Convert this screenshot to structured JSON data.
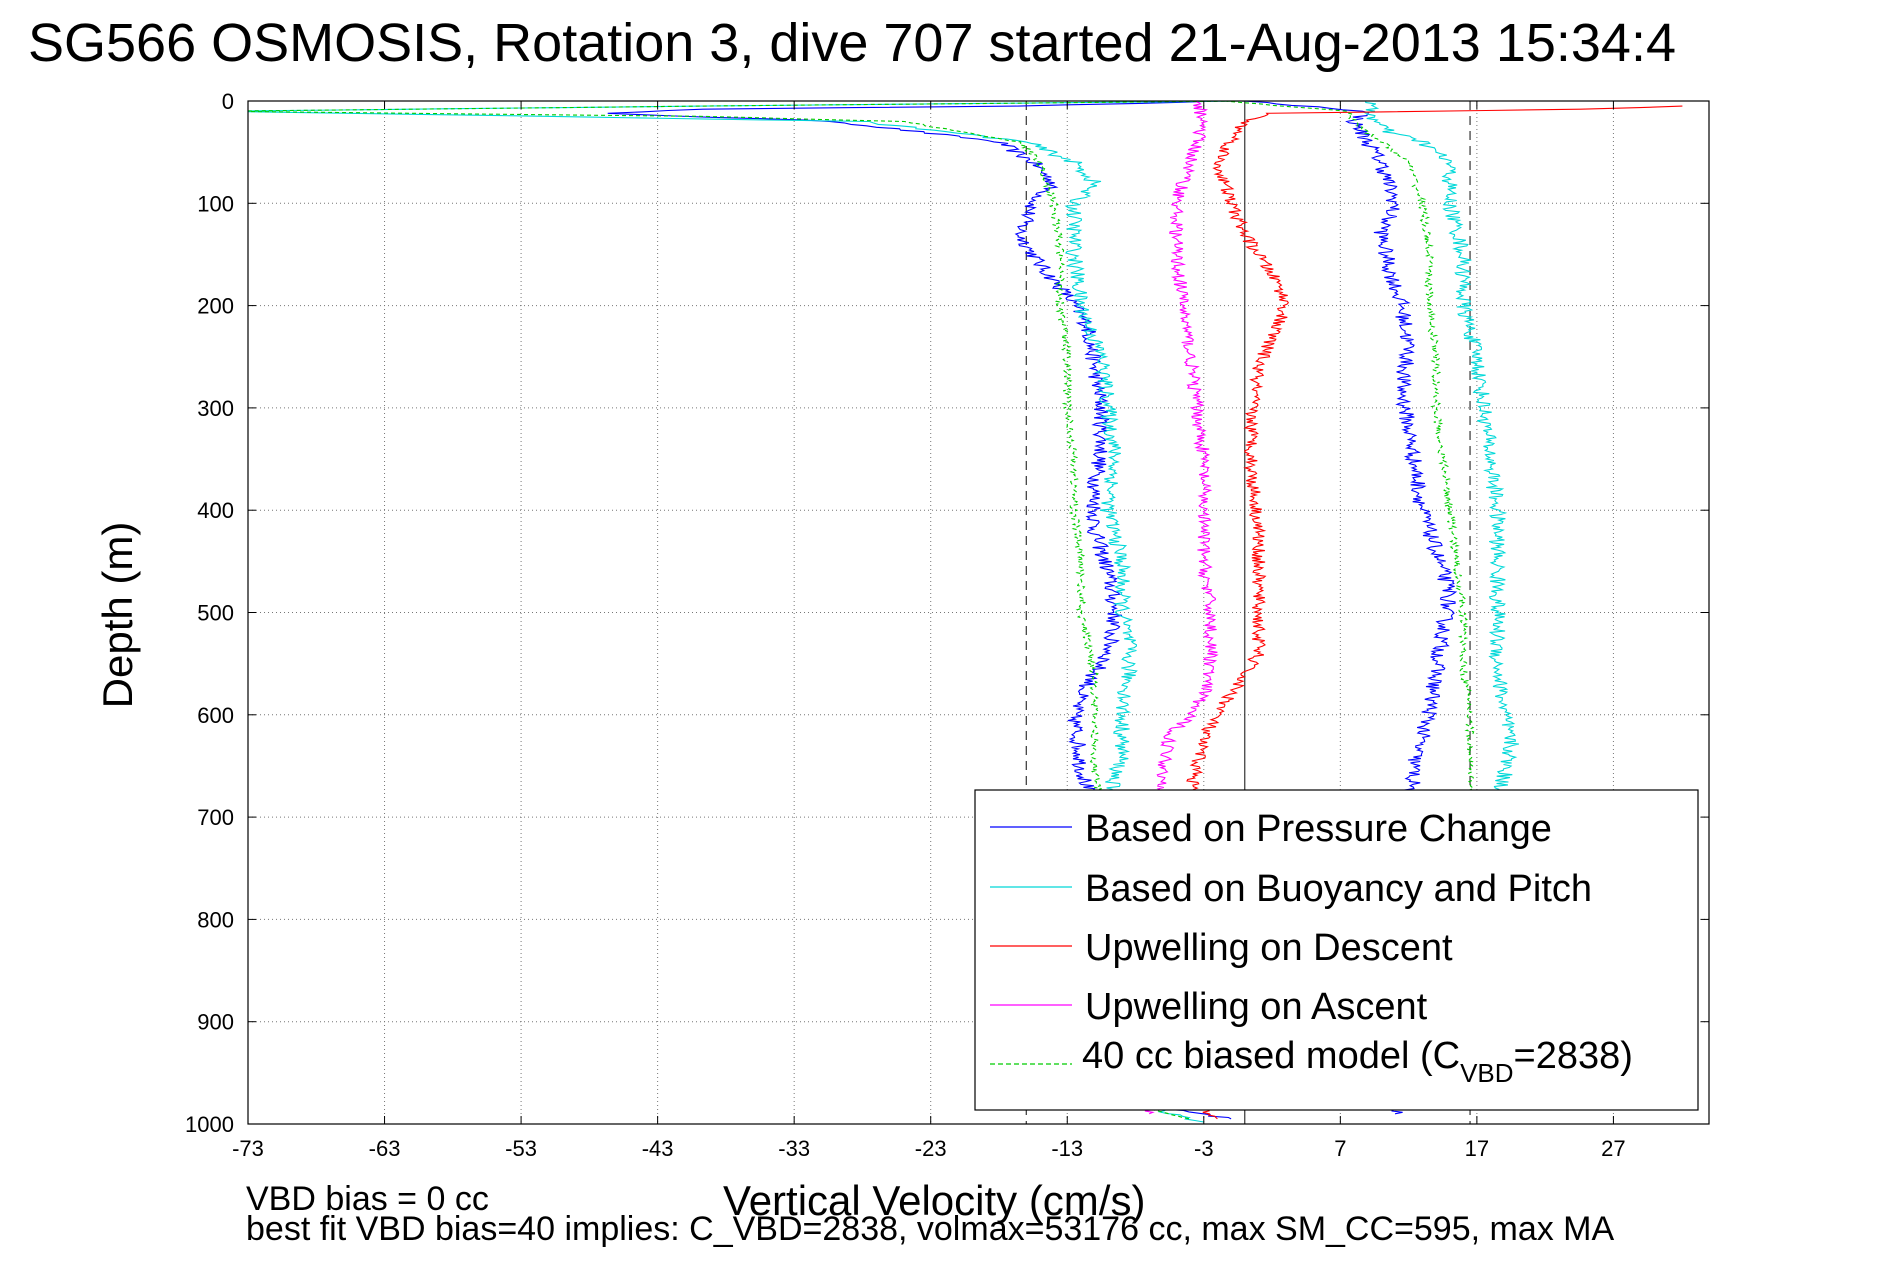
{
  "chart_data": {
    "type": "line",
    "title": "SG566 OSMOSIS, Rotation 3, dive 707 started 21-Aug-2013 15:34:4",
    "xlabel": "Vertical Velocity (cm/s)",
    "ylabel": "Depth (m)",
    "xlim": [
      -73,
      34
    ],
    "ylim": [
      0,
      1000
    ],
    "y_reversed": true,
    "grid": true,
    "x_ticks": [
      "-73",
      "-63",
      "-53",
      "-43",
      "-33",
      "-23",
      "-13",
      "-3",
      "7",
      "17",
      "27"
    ],
    "y_ticks": [
      "0",
      "100",
      "200",
      "300",
      "400",
      "500",
      "600",
      "700",
      "800",
      "900",
      "1000"
    ],
    "legend_position": "bottom-right",
    "legend": {
      "pressure": "Based on Pressure Change",
      "buoyancy": "Based on Buoyancy and Pitch",
      "updesc": "Upwelling on Descent",
      "upasc": "Upwelling on Ascent",
      "model_pre": "40 cc biased model (C",
      "model_sub": "VBD",
      "model_post": "=2838)"
    },
    "reference_lines_x": [
      {
        "x": -16,
        "style": "dashed"
      },
      {
        "x": 0,
        "style": "solid"
      },
      {
        "x": 16.5,
        "style": "dashed"
      }
    ],
    "series": [
      {
        "name": "Based on Pressure Change",
        "color": "#0000ff",
        "style": "solid",
        "jitter": 0.6,
        "x": [
          -1.5,
          -16,
          -40,
          -47,
          -30,
          -18,
          -15.5,
          -14,
          -15.5,
          -16.5,
          -15,
          -13,
          -11.5,
          -11,
          -10.5,
          -10.5,
          -11,
          -11,
          -10,
          -9.5,
          -10,
          -11,
          -12,
          -12.5,
          -12,
          -11,
          -10,
          -8,
          -1
        ],
        "y": [
          0,
          5,
          8,
          12,
          20,
          40,
          60,
          80,
          100,
          130,
          160,
          190,
          220,
          260,
          300,
          340,
          380,
          420,
          460,
          500,
          540,
          560,
          580,
          600,
          650,
          700,
          800,
          980,
          995
        ]
      },
      {
        "name": "Based on Pressure Change",
        "color": "#0000ff",
        "style": "solid",
        "jitter": 0.6,
        "x": [
          0,
          9,
          8,
          9,
          10,
          11,
          10,
          10.5,
          11.5,
          12,
          11.5,
          12,
          12.5,
          13,
          14,
          15,
          14.5,
          14,
          13.5,
          12.5,
          12,
          12,
          11
        ],
        "y": [
          0,
          10,
          20,
          40,
          60,
          100,
          130,
          160,
          200,
          240,
          280,
          320,
          360,
          400,
          440,
          480,
          520,
          560,
          600,
          640,
          700,
          800,
          990
        ]
      },
      {
        "name": "Based on Buoyancy and Pitch",
        "color": "#00d8d8",
        "style": "solid",
        "jitter": 0.6,
        "x": [
          0,
          -40,
          -75,
          -28,
          -16,
          -12.5,
          -11,
          -12.5,
          -12.5,
          -12,
          -10.5,
          -10,
          -9.5,
          -10,
          -9,
          -9,
          -8.5,
          -8.5,
          -9,
          -9,
          -9.5,
          -10,
          -9.5,
          -9,
          -8,
          -3
        ],
        "y": [
          0,
          5,
          10,
          20,
          40,
          60,
          80,
          100,
          150,
          200,
          250,
          300,
          350,
          400,
          450,
          500,
          530,
          560,
          600,
          640,
          660,
          680,
          700,
          800,
          980,
          998
        ]
      },
      {
        "name": "Based on Buoyancy and Pitch",
        "color": "#00d8d8",
        "style": "solid",
        "jitter": 0.6,
        "x": [
          9,
          9.5,
          10.5,
          13,
          15,
          15,
          16,
          16,
          17,
          17.5,
          18,
          18.5,
          18.5,
          18.5,
          18.5,
          19,
          19.5,
          19,
          18.5,
          18
        ],
        "y": [
          0,
          20,
          30,
          40,
          60,
          100,
          150,
          200,
          250,
          300,
          350,
          400,
          450,
          500,
          550,
          600,
          630,
          660,
          680,
          700
        ]
      },
      {
        "name": "Upwelling on Descent",
        "color": "#ff0000",
        "style": "solid",
        "jitter": 0.5,
        "x": [
          32,
          25,
          2,
          0,
          -1,
          -2,
          -1.5,
          -1,
          0,
          1.5,
          2.5,
          3,
          2,
          1,
          0.5,
          0.5,
          1,
          1,
          1,
          0,
          -1,
          -3,
          -4,
          -3,
          -2
        ],
        "y": [
          5,
          8,
          12,
          20,
          40,
          60,
          80,
          100,
          130,
          160,
          180,
          200,
          230,
          260,
          300,
          360,
          420,
          480,
          540,
          560,
          580,
          620,
          680,
          990,
          995
        ]
      },
      {
        "name": "Upwelling on Ascent",
        "color": "#ff00ff",
        "style": "solid",
        "jitter": 0.5,
        "x": [
          -3.5,
          -3,
          -4,
          -5,
          -5,
          -4.5,
          -4,
          -3.5,
          -3,
          -3,
          -3,
          -2.5,
          -2.5,
          -3,
          -4,
          -5.5,
          -6,
          -5.5,
          -7
        ],
        "y": [
          0,
          20,
          60,
          100,
          150,
          200,
          250,
          300,
          350,
          400,
          450,
          500,
          550,
          580,
          600,
          620,
          660,
          700,
          990
        ]
      },
      {
        "name": "40 cc biased model (CVBD=2838)",
        "color": "#00cc00",
        "style": "dashed",
        "jitter": 0.3,
        "x": [
          0,
          -40,
          -75,
          -40,
          -25,
          -16.5,
          -15,
          -14,
          -13.5,
          -13.5,
          -13,
          -13,
          -12.5,
          -12.5,
          -12,
          -12,
          -11.5,
          -11,
          -11,
          -11,
          -10.5,
          -10.5,
          -8.5,
          -4
        ],
        "y": [
          0,
          5,
          10,
          15,
          20,
          40,
          60,
          100,
          150,
          200,
          250,
          300,
          350,
          400,
          450,
          500,
          530,
          560,
          600,
          650,
          700,
          800,
          980,
          995
        ]
      },
      {
        "name": "40 cc biased model (CVBD=2838)",
        "color": "#00cc00",
        "style": "dashed",
        "jitter": 0.3,
        "x": [
          -1.5,
          7.5,
          8,
          10,
          12,
          13,
          13.5,
          13.5,
          14,
          14,
          14.5,
          15,
          15.5,
          16,
          16,
          16.5,
          16.5,
          16.5
        ],
        "y": [
          0,
          10,
          20,
          40,
          60,
          100,
          150,
          200,
          250,
          300,
          350,
          400,
          450,
          500,
          550,
          600,
          650,
          700
        ]
      }
    ]
  },
  "footer": {
    "line1": "VBD bias = 0 cc",
    "line2": "best fit VBD bias=40 implies: C_VBD=2838, volmax=53176 cc, max SM_CC=595, max MA"
  }
}
